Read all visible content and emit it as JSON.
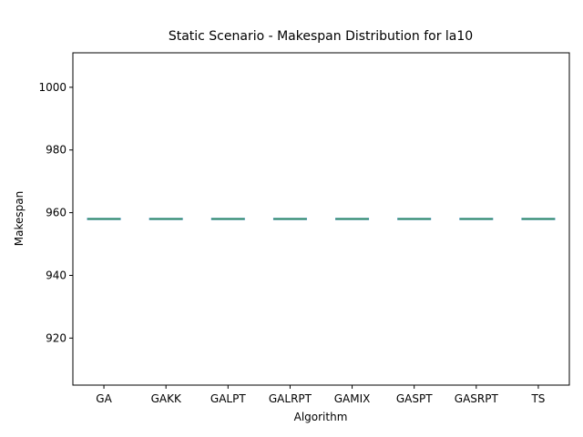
{
  "chart_data": {
    "type": "box",
    "title": "Static Scenario - Makespan Distribution for la10",
    "xlabel": "Algorithm",
    "ylabel": "Makespan",
    "categories": [
      "GA",
      "GAKK",
      "GALPT",
      "GALRPT",
      "GAMIX",
      "GASPT",
      "GASRPT",
      "TS"
    ],
    "values": [
      958,
      958,
      958,
      958,
      958,
      958,
      958,
      958
    ],
    "ylim": [
      905,
      1011
    ],
    "yticks": [
      920,
      940,
      960,
      980,
      1000
    ],
    "grid": false,
    "colors": {
      "median": "#2e8b57",
      "box": "#1f77b4"
    }
  }
}
